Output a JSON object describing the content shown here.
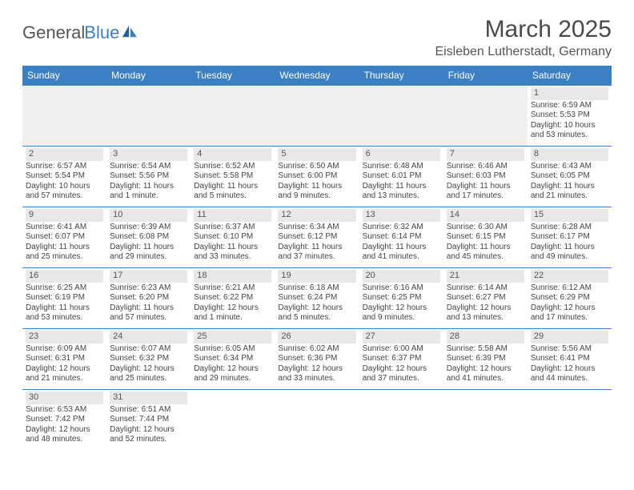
{
  "logo": {
    "part1": "General",
    "part2": "Blue"
  },
  "title": "March 2025",
  "location": "Eisleben Lutherstadt, Germany",
  "colors": {
    "header_bg": "#3b7fc4",
    "header_text": "#ffffff",
    "cell_border": "#3b7fc4",
    "shaded_bg": "#e8e8e8",
    "text": "#444444",
    "title_color": "#4a4a4a"
  },
  "day_names": [
    "Sunday",
    "Monday",
    "Tuesday",
    "Wednesday",
    "Thursday",
    "Friday",
    "Saturday"
  ],
  "weeks": [
    [
      null,
      null,
      null,
      null,
      null,
      null,
      {
        "n": "1",
        "sunrise": "Sunrise: 6:59 AM",
        "sunset": "Sunset: 5:53 PM",
        "daylight": "Daylight: 10 hours and 53 minutes."
      }
    ],
    [
      {
        "n": "2",
        "sunrise": "Sunrise: 6:57 AM",
        "sunset": "Sunset: 5:54 PM",
        "daylight": "Daylight: 10 hours and 57 minutes."
      },
      {
        "n": "3",
        "sunrise": "Sunrise: 6:54 AM",
        "sunset": "Sunset: 5:56 PM",
        "daylight": "Daylight: 11 hours and 1 minute."
      },
      {
        "n": "4",
        "sunrise": "Sunrise: 6:52 AM",
        "sunset": "Sunset: 5:58 PM",
        "daylight": "Daylight: 11 hours and 5 minutes."
      },
      {
        "n": "5",
        "sunrise": "Sunrise: 6:50 AM",
        "sunset": "Sunset: 6:00 PM",
        "daylight": "Daylight: 11 hours and 9 minutes."
      },
      {
        "n": "6",
        "sunrise": "Sunrise: 6:48 AM",
        "sunset": "Sunset: 6:01 PM",
        "daylight": "Daylight: 11 hours and 13 minutes."
      },
      {
        "n": "7",
        "sunrise": "Sunrise: 6:46 AM",
        "sunset": "Sunset: 6:03 PM",
        "daylight": "Daylight: 11 hours and 17 minutes."
      },
      {
        "n": "8",
        "sunrise": "Sunrise: 6:43 AM",
        "sunset": "Sunset: 6:05 PM",
        "daylight": "Daylight: 11 hours and 21 minutes."
      }
    ],
    [
      {
        "n": "9",
        "sunrise": "Sunrise: 6:41 AM",
        "sunset": "Sunset: 6:07 PM",
        "daylight": "Daylight: 11 hours and 25 minutes."
      },
      {
        "n": "10",
        "sunrise": "Sunrise: 6:39 AM",
        "sunset": "Sunset: 6:08 PM",
        "daylight": "Daylight: 11 hours and 29 minutes."
      },
      {
        "n": "11",
        "sunrise": "Sunrise: 6:37 AM",
        "sunset": "Sunset: 6:10 PM",
        "daylight": "Daylight: 11 hours and 33 minutes."
      },
      {
        "n": "12",
        "sunrise": "Sunrise: 6:34 AM",
        "sunset": "Sunset: 6:12 PM",
        "daylight": "Daylight: 11 hours and 37 minutes."
      },
      {
        "n": "13",
        "sunrise": "Sunrise: 6:32 AM",
        "sunset": "Sunset: 6:14 PM",
        "daylight": "Daylight: 11 hours and 41 minutes."
      },
      {
        "n": "14",
        "sunrise": "Sunrise: 6:30 AM",
        "sunset": "Sunset: 6:15 PM",
        "daylight": "Daylight: 11 hours and 45 minutes."
      },
      {
        "n": "15",
        "sunrise": "Sunrise: 6:28 AM",
        "sunset": "Sunset: 6:17 PM",
        "daylight": "Daylight: 11 hours and 49 minutes."
      }
    ],
    [
      {
        "n": "16",
        "sunrise": "Sunrise: 6:25 AM",
        "sunset": "Sunset: 6:19 PM",
        "daylight": "Daylight: 11 hours and 53 minutes."
      },
      {
        "n": "17",
        "sunrise": "Sunrise: 6:23 AM",
        "sunset": "Sunset: 6:20 PM",
        "daylight": "Daylight: 11 hours and 57 minutes."
      },
      {
        "n": "18",
        "sunrise": "Sunrise: 6:21 AM",
        "sunset": "Sunset: 6:22 PM",
        "daylight": "Daylight: 12 hours and 1 minute."
      },
      {
        "n": "19",
        "sunrise": "Sunrise: 6:18 AM",
        "sunset": "Sunset: 6:24 PM",
        "daylight": "Daylight: 12 hours and 5 minutes."
      },
      {
        "n": "20",
        "sunrise": "Sunrise: 6:16 AM",
        "sunset": "Sunset: 6:25 PM",
        "daylight": "Daylight: 12 hours and 9 minutes."
      },
      {
        "n": "21",
        "sunrise": "Sunrise: 6:14 AM",
        "sunset": "Sunset: 6:27 PM",
        "daylight": "Daylight: 12 hours and 13 minutes."
      },
      {
        "n": "22",
        "sunrise": "Sunrise: 6:12 AM",
        "sunset": "Sunset: 6:29 PM",
        "daylight": "Daylight: 12 hours and 17 minutes."
      }
    ],
    [
      {
        "n": "23",
        "sunrise": "Sunrise: 6:09 AM",
        "sunset": "Sunset: 6:31 PM",
        "daylight": "Daylight: 12 hours and 21 minutes."
      },
      {
        "n": "24",
        "sunrise": "Sunrise: 6:07 AM",
        "sunset": "Sunset: 6:32 PM",
        "daylight": "Daylight: 12 hours and 25 minutes."
      },
      {
        "n": "25",
        "sunrise": "Sunrise: 6:05 AM",
        "sunset": "Sunset: 6:34 PM",
        "daylight": "Daylight: 12 hours and 29 minutes."
      },
      {
        "n": "26",
        "sunrise": "Sunrise: 6:02 AM",
        "sunset": "Sunset: 6:36 PM",
        "daylight": "Daylight: 12 hours and 33 minutes."
      },
      {
        "n": "27",
        "sunrise": "Sunrise: 6:00 AM",
        "sunset": "Sunset: 6:37 PM",
        "daylight": "Daylight: 12 hours and 37 minutes."
      },
      {
        "n": "28",
        "sunrise": "Sunrise: 5:58 AM",
        "sunset": "Sunset: 6:39 PM",
        "daylight": "Daylight: 12 hours and 41 minutes."
      },
      {
        "n": "29",
        "sunrise": "Sunrise: 5:56 AM",
        "sunset": "Sunset: 6:41 PM",
        "daylight": "Daylight: 12 hours and 44 minutes."
      }
    ],
    [
      {
        "n": "30",
        "sunrise": "Sunrise: 6:53 AM",
        "sunset": "Sunset: 7:42 PM",
        "daylight": "Daylight: 12 hours and 48 minutes."
      },
      {
        "n": "31",
        "sunrise": "Sunrise: 6:51 AM",
        "sunset": "Sunset: 7:44 PM",
        "daylight": "Daylight: 12 hours and 52 minutes."
      },
      null,
      null,
      null,
      null,
      null
    ]
  ]
}
